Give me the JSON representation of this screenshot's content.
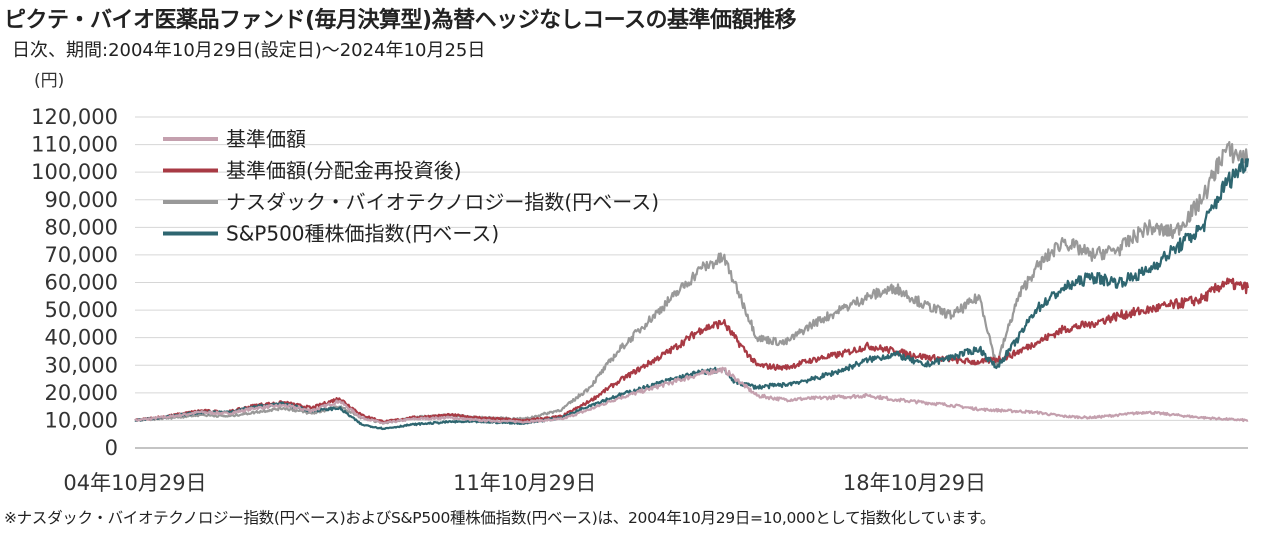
{
  "title": "ピクテ・バイオ医薬品ファンド(毎月決算型)為替ヘッジなしコースの基準価額推移",
  "subtitle": "日次、期間:2004年10月29日(設定日)〜2024年10月25日",
  "footnote": "※ナスダック・バイオテクノロジー指数(円ベース)およびS&P500種株価指数(円ベース)は、2004年10月29日=10,000として指数化しています。",
  "chart_data": {
    "type": "line",
    "title": "ピクテ・バイオ医薬品ファンド(毎月決算型)為替ヘッジなしコースの基準価額推移",
    "ylabel": "(円)",
    "ylim": [
      0,
      120000
    ],
    "xlim": [
      2004.83,
      2024.82
    ],
    "yticks": [
      "120,000",
      "110,000",
      "100,000",
      "90,000",
      "80,000",
      "70,000",
      "60,000",
      "50,000",
      "40,000",
      "30,000",
      "20,000",
      "10,000",
      "0"
    ],
    "xticks": [
      {
        "label": "04年10月29日",
        "x": 2004.83
      },
      {
        "label": "11年10月29日",
        "x": 2011.83
      },
      {
        "label": "18年10月29日",
        "x": 2018.83
      }
    ],
    "grid": true,
    "legend": "top-left",
    "series": [
      {
        "name": "基準価額",
        "color": "#c4a0ae",
        "x": [
          2004.83,
          2005.5,
          2006.0,
          2006.5,
          2007.0,
          2007.5,
          2008.0,
          2008.5,
          2008.9,
          2009.3,
          2009.8,
          2010.5,
          2011.0,
          2011.83,
          2012.5,
          2013.0,
          2013.5,
          2014.0,
          2014.5,
          2015.0,
          2015.4,
          2015.6,
          2016.0,
          2016.5,
          2017.0,
          2017.5,
          2018.0,
          2018.5,
          2019.0,
          2019.5,
          2020.0,
          2020.5,
          2021.0,
          2021.5,
          2022.0,
          2022.5,
          2023.0,
          2023.5,
          2024.0,
          2024.4,
          2024.82
        ],
        "values": [
          10000,
          11500,
          13000,
          12500,
          14500,
          15500,
          13500,
          17000,
          11000,
          9000,
          10500,
          11000,
          10000,
          9500,
          10500,
          14000,
          18000,
          21000,
          24000,
          27000,
          28500,
          25500,
          19000,
          17500,
          18000,
          18500,
          19000,
          17500,
          16500,
          15500,
          14000,
          13500,
          13000,
          11500,
          11000,
          12000,
          13000,
          12000,
          11000,
          10500,
          10000
        ]
      },
      {
        "name": "基準価額(分配金再投資後)",
        "color": "#a83a44",
        "x": [
          2004.83,
          2005.5,
          2006.0,
          2006.5,
          2007.0,
          2007.5,
          2008.0,
          2008.5,
          2008.9,
          2009.3,
          2009.8,
          2010.5,
          2011.0,
          2011.83,
          2012.5,
          2013.0,
          2013.5,
          2014.0,
          2014.5,
          2015.0,
          2015.4,
          2015.6,
          2016.0,
          2016.5,
          2017.0,
          2017.5,
          2018.0,
          2018.5,
          2019.0,
          2019.5,
          2020.0,
          2020.5,
          2021.0,
          2021.5,
          2022.0,
          2022.5,
          2023.0,
          2023.5,
          2024.0,
          2024.4,
          2024.82
        ],
        "values": [
          10000,
          11800,
          13500,
          13000,
          15500,
          16500,
          14500,
          18000,
          12000,
          9500,
          11000,
          12000,
          11000,
          10000,
          11500,
          17000,
          24000,
          30000,
          36000,
          43000,
          45500,
          40000,
          30000,
          29000,
          32000,
          34000,
          37000,
          35000,
          33000,
          32000,
          31000,
          33000,
          38000,
          43000,
          45000,
          48000,
          50000,
          52000,
          54000,
          60000,
          58000
        ]
      },
      {
        "name": "ナスダック・バイオテクノロジー指数(円ベース)",
        "color": "#999999",
        "x": [
          2004.83,
          2005.5,
          2006.0,
          2006.5,
          2007.0,
          2007.5,
          2008.0,
          2008.5,
          2008.9,
          2009.3,
          2009.8,
          2010.5,
          2011.0,
          2011.83,
          2012.5,
          2013.0,
          2013.5,
          2014.0,
          2014.5,
          2015.0,
          2015.4,
          2015.6,
          2016.0,
          2016.5,
          2017.0,
          2017.5,
          2018.0,
          2018.5,
          2019.0,
          2019.5,
          2020.0,
          2020.3,
          2020.7,
          2021.0,
          2021.5,
          2022.0,
          2022.5,
          2023.0,
          2023.5,
          2024.0,
          2024.4,
          2024.82
        ],
        "values": [
          10000,
          11000,
          12000,
          11500,
          13000,
          14500,
          12500,
          15000,
          11000,
          9000,
          11000,
          12000,
          11000,
          10500,
          14000,
          22000,
          35000,
          45000,
          55000,
          65000,
          69000,
          60000,
          40000,
          38000,
          45000,
          50000,
          55000,
          58000,
          52000,
          48000,
          55000,
          30000,
          55000,
          65000,
          75000,
          70000,
          72000,
          80000,
          78000,
          90000,
          108000,
          105000
        ]
      },
      {
        "name": "S&P500種株価指数(円ベース)",
        "color": "#2e6670",
        "x": [
          2004.83,
          2005.5,
          2006.0,
          2006.5,
          2007.0,
          2007.5,
          2008.0,
          2008.5,
          2008.9,
          2009.3,
          2009.8,
          2010.5,
          2011.0,
          2011.83,
          2012.5,
          2013.0,
          2013.5,
          2014.0,
          2014.5,
          2015.0,
          2015.4,
          2015.6,
          2016.0,
          2016.5,
          2017.0,
          2017.5,
          2018.0,
          2018.5,
          2019.0,
          2019.5,
          2020.0,
          2020.3,
          2020.7,
          2021.0,
          2021.5,
          2022.0,
          2022.5,
          2023.0,
          2023.5,
          2024.0,
          2024.4,
          2024.82
        ],
        "values": [
          10000,
          11500,
          13000,
          13000,
          15000,
          16000,
          13500,
          14500,
          8500,
          7000,
          8500,
          9500,
          9500,
          9000,
          11000,
          15500,
          19000,
          22000,
          25000,
          27500,
          28500,
          24000,
          22000,
          23000,
          25000,
          28000,
          32000,
          34000,
          30000,
          33000,
          36000,
          29000,
          40000,
          50000,
          58000,
          62000,
          60000,
          64000,
          72000,
          80000,
          95000,
          105000
        ]
      }
    ]
  }
}
